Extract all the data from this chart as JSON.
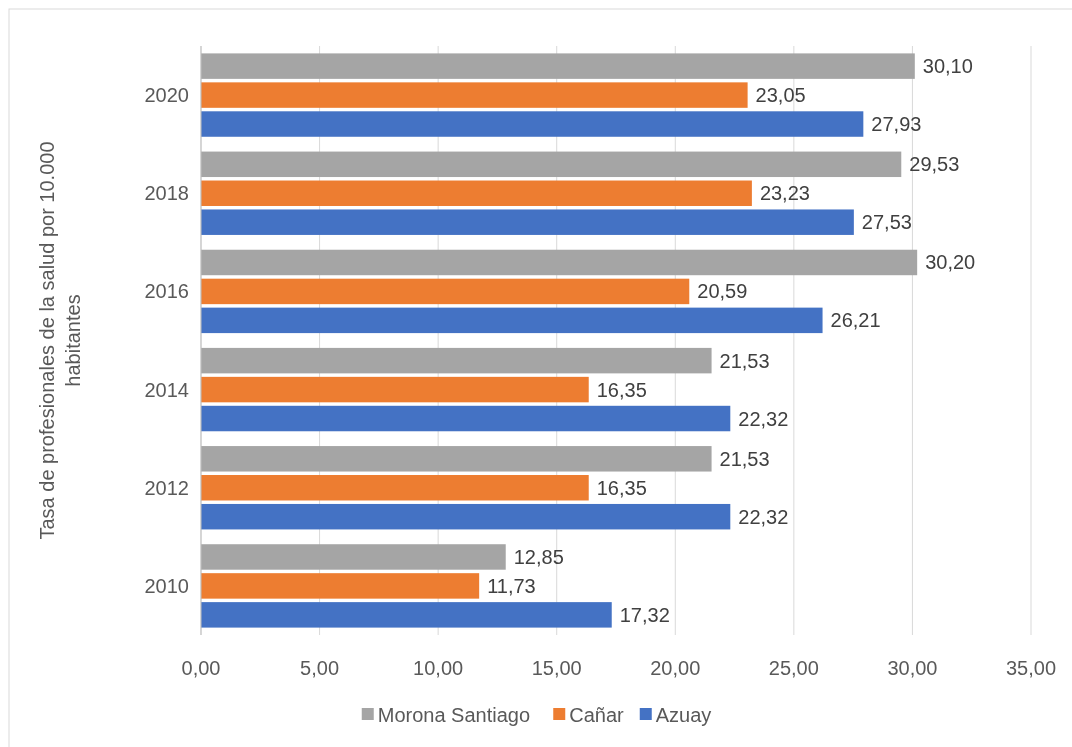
{
  "chart_data": {
    "type": "bar",
    "orientation": "horizontal",
    "ylabel": "Tasa de profesionales de la salud por 10.000 habitantes",
    "categories": [
      "2020",
      "2018",
      "2016",
      "2014",
      "2012",
      "2010"
    ],
    "series": [
      {
        "name": "Morona Santiago",
        "color": "#a5a5a5",
        "values": [
          30.1,
          29.53,
          30.2,
          21.53,
          21.53,
          12.85
        ],
        "value_labels": [
          "30,10",
          "29,53",
          "30,20",
          "21,53",
          "21,53",
          "12,85"
        ]
      },
      {
        "name": "Cañar",
        "color": "#ed7d31",
        "values": [
          23.05,
          23.23,
          20.59,
          16.35,
          16.35,
          11.73
        ],
        "value_labels": [
          "23,05",
          "23,23",
          "20,59",
          "16,35",
          "16,35",
          "11,73"
        ]
      },
      {
        "name": "Azuay",
        "color": "#4472c4",
        "values": [
          27.93,
          27.53,
          26.21,
          22.32,
          22.32,
          17.32
        ],
        "value_labels": [
          "27,93",
          "27,53",
          "26,21",
          "22,32",
          "22,32",
          "17,32"
        ]
      }
    ],
    "xlim": [
      0,
      35
    ],
    "xticks": [
      {
        "value": 0,
        "label": "0,00"
      },
      {
        "value": 5,
        "label": "5,00"
      },
      {
        "value": 10,
        "label": "10,00"
      },
      {
        "value": 15,
        "label": "15,00"
      },
      {
        "value": 20,
        "label": "20,00"
      },
      {
        "value": 25,
        "label": "25,00"
      },
      {
        "value": 30,
        "label": "30,00"
      },
      {
        "value": 35,
        "label": "35,00"
      }
    ],
    "grid": "x",
    "legend": "bottom"
  }
}
